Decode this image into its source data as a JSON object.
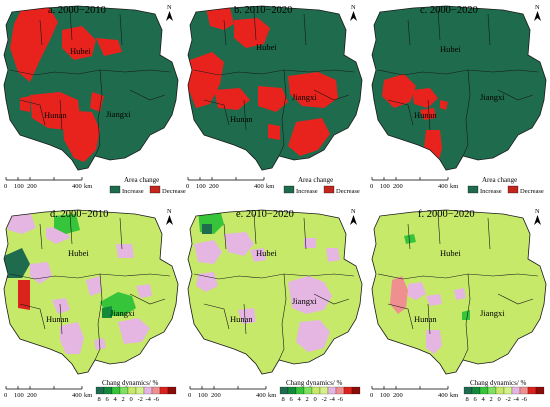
{
  "colors": {
    "increase": "#1f6b4e",
    "decrease": "#e8231d",
    "ramp": [
      "#1f6b4e",
      "#138a3a",
      "#35c43a",
      "#7fe05f",
      "#c6e96a",
      "#d4f08c",
      "#e6b6e2",
      "#f08f8f",
      "#d9231c",
      "#8b0d0b"
    ]
  },
  "top_panels": [
    {
      "title": "a. 2000−2010",
      "labels": {
        "hubei": "Hubei",
        "hunan": "Hunan",
        "jiangxi": "Jiangxi"
      }
    },
    {
      "title": "b. 2010−2020",
      "labels": {
        "hubei": "Hubei",
        "hunan": "Hunan",
        "jiangxi": "Jiangxi"
      }
    },
    {
      "title": "c. 2000−2020",
      "labels": {
        "hubei": "Hubei",
        "hunan": "Hunan",
        "jiangxi": "Jiangxi"
      }
    }
  ],
  "bottom_panels": [
    {
      "title": "d. 2000−2010",
      "labels": {
        "hubei": "Hubei",
        "hunan": "Hunan",
        "jiangxi": "Jiangxi"
      }
    },
    {
      "title": "e. 2010−2020",
      "labels": {
        "hubei": "Hubei",
        "hunan": "Hunan",
        "jiangxi": "Jiangxi"
      }
    },
    {
      "title": "f. 2000−2020",
      "labels": {
        "hubei": "Hubei",
        "hunan": "Hunan",
        "jiangxi": "Jiangxi"
      }
    }
  ],
  "north": "N",
  "scale_labels": [
    "0",
    "100",
    "200",
    "400",
    "km"
  ],
  "area_legend": {
    "title": "Area change",
    "increase": "Increase",
    "decrease": "Decrease"
  },
  "dyn_legend": {
    "title": "Chang dynamics/ %",
    "ticks": [
      "8",
      "6",
      "4",
      "2",
      "0",
      "-2",
      "-4",
      "-6"
    ]
  }
}
